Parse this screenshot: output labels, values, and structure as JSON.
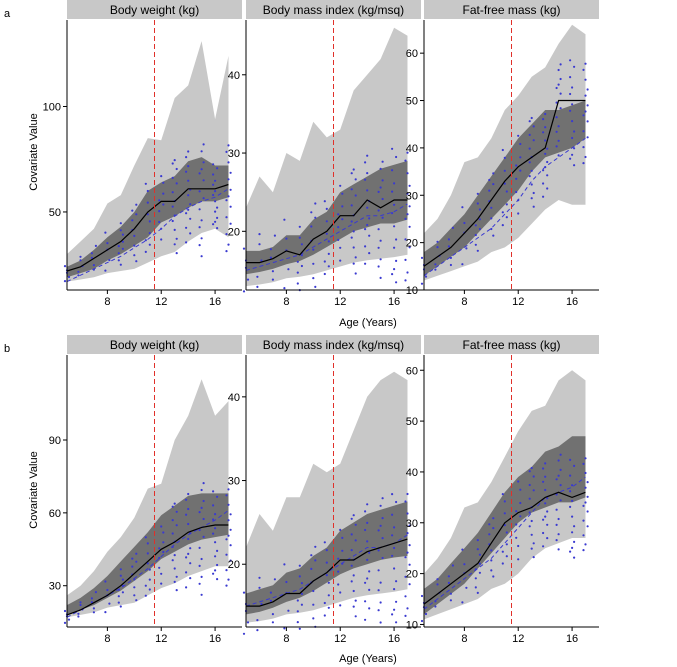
{
  "figure": {
    "panel_labels": [
      "a",
      "b"
    ],
    "xlabel": "Age (Years)",
    "ylabel": "Covariate Value",
    "colors": {
      "outer_band": "#c8c8c8",
      "inner_band": "#717171",
      "median_line": "#000000",
      "observed_points": "#3a3ad0",
      "observed_trend": "#3a3ad0",
      "reference_line": "#e0302a",
      "strip": "#c8c8c8",
      "background": "#ffffff"
    }
  },
  "chart_data": [
    {
      "type": "line",
      "row": "a",
      "title": "Body weight (kg)",
      "xlabel": "",
      "ylabel": "Covariate Value",
      "xlim": [
        5,
        18
      ],
      "ylim": [
        13,
        141
      ],
      "xticks": [
        8,
        12,
        16
      ],
      "yticks": [
        50,
        100
      ],
      "reference_x": 11.5,
      "x": [
        5,
        6,
        7,
        8,
        9,
        10,
        11,
        12,
        13,
        14,
        15,
        16,
        17
      ],
      "series": [
        {
          "name": "5th percentile",
          "values": [
            17,
            18,
            19,
            21,
            22,
            23,
            26,
            29,
            31,
            36,
            40,
            42,
            38
          ]
        },
        {
          "name": "25th percentile",
          "values": [
            19,
            21,
            23,
            27,
            30,
            34,
            38,
            45,
            48,
            52,
            55,
            55,
            57
          ]
        },
        {
          "name": "median",
          "values": [
            22,
            24,
            28,
            32,
            36,
            42,
            50,
            55,
            55,
            61,
            61,
            61,
            63
          ]
        },
        {
          "name": "75th percentile",
          "values": [
            24,
            27,
            32,
            38,
            43,
            50,
            60,
            64,
            67,
            74,
            76,
            72,
            72
          ]
        },
        {
          "name": "95th percentile",
          "values": [
            30,
            36,
            42,
            54,
            58,
            72,
            85,
            84,
            104,
            110,
            131,
            94,
            124
          ]
        },
        {
          "name": "observed trend",
          "values": [
            17,
            20,
            23,
            26,
            29,
            33,
            37,
            42,
            48,
            52,
            55,
            57,
            61
          ]
        }
      ]
    },
    {
      "type": "line",
      "row": "a",
      "title": "Body mass index (kg/msq)",
      "xlabel": "",
      "ylabel": "",
      "xlim": [
        5,
        18
      ],
      "ylim": [
        12.5,
        47
      ],
      "xticks": [
        8,
        12,
        16
      ],
      "yticks": [
        20,
        30,
        40
      ],
      "reference_x": 11.5,
      "x": [
        5,
        6,
        7,
        8,
        9,
        10,
        11,
        12,
        13,
        14,
        15,
        16,
        17
      ],
      "series": [
        {
          "name": "5th percentile",
          "values": [
            13,
            13.2,
            13.5,
            14,
            14.2,
            14.5,
            15,
            15.5,
            16,
            16.3,
            16.5,
            16.7,
            17
          ]
        },
        {
          "name": "25th percentile",
          "values": [
            14.5,
            14.8,
            15.2,
            15.8,
            16.2,
            17,
            18,
            19,
            20,
            20.5,
            21,
            21,
            21.5
          ]
        },
        {
          "name": "median",
          "values": [
            16,
            16,
            16.5,
            17.5,
            17,
            19,
            20,
            22,
            22,
            24,
            23,
            24,
            24
          ]
        },
        {
          "name": "75th percentile",
          "values": [
            17.5,
            17.5,
            18,
            19.5,
            19.5,
            21.5,
            22.5,
            25,
            26,
            27,
            28,
            28.5,
            29
          ]
        },
        {
          "name": "95th percentile",
          "values": [
            23,
            27,
            25,
            30,
            29,
            34,
            32,
            33,
            38,
            40,
            42,
            46,
            45
          ]
        },
        {
          "name": "observed trend",
          "values": [
            15,
            15.5,
            16,
            16.5,
            17,
            18,
            19,
            20,
            21,
            22,
            22,
            22.5,
            23.5
          ]
        }
      ]
    },
    {
      "type": "line",
      "row": "a",
      "title": "Fat-free mass (kg)",
      "xlabel": "",
      "ylabel": "",
      "xlim": [
        5,
        18
      ],
      "ylim": [
        10,
        67
      ],
      "xticks": [
        8,
        12,
        16
      ],
      "yticks": [
        10,
        20,
        30,
        40,
        50,
        60
      ],
      "reference_x": 11.5,
      "x": [
        5,
        6,
        7,
        8,
        9,
        10,
        11,
        12,
        13,
        14,
        15,
        16,
        17
      ],
      "series": [
        {
          "name": "5th percentile",
          "values": [
            12,
            13,
            14,
            15,
            16,
            18,
            19,
            21,
            24,
            27,
            29,
            28,
            28
          ]
        },
        {
          "name": "25th percentile",
          "values": [
            13,
            15,
            17,
            19,
            22,
            25,
            28,
            31,
            35,
            38,
            39,
            40,
            42
          ]
        },
        {
          "name": "median",
          "values": [
            15,
            17,
            19,
            22,
            25,
            29,
            33,
            36,
            38,
            40,
            50,
            50,
            50
          ]
        },
        {
          "name": "75th percentile",
          "values": [
            18,
            20,
            23,
            26,
            30,
            34,
            38,
            42,
            45,
            48,
            48,
            49,
            50
          ]
        },
        {
          "name": "95th percentile",
          "values": [
            22,
            25,
            30,
            37,
            38,
            42,
            48,
            51,
            55,
            57,
            62,
            66,
            64
          ]
        },
        {
          "name": "observed trend",
          "values": [
            13,
            15,
            17,
            19,
            21,
            23,
            26,
            29,
            33,
            36,
            38,
            40,
            42
          ]
        }
      ]
    },
    {
      "type": "line",
      "row": "b",
      "title": "Body weight (kg)",
      "xlabel": "",
      "ylabel": "Covariate Value",
      "xlim": [
        5,
        18
      ],
      "ylim": [
        13,
        125
      ],
      "xticks": [
        8,
        12,
        16
      ],
      "yticks": [
        30,
        60,
        90
      ],
      "reference_x": 11.5,
      "x": [
        5,
        6,
        7,
        8,
        9,
        10,
        11,
        12,
        13,
        14,
        15,
        16,
        17
      ],
      "series": [
        {
          "name": "5th percentile",
          "values": [
            17,
            18,
            19,
            21,
            22,
            23,
            26,
            29,
            31,
            34,
            36,
            38,
            38
          ]
        },
        {
          "name": "25th percentile",
          "values": [
            18,
            20,
            22,
            25,
            28,
            32,
            36,
            41,
            44,
            47,
            49,
            50,
            51
          ]
        },
        {
          "name": "median",
          "values": [
            18,
            20,
            23,
            26,
            30,
            35,
            40,
            45,
            48,
            52,
            54,
            55,
            55
          ]
        },
        {
          "name": "75th percentile",
          "values": [
            22,
            25,
            29,
            34,
            40,
            46,
            52,
            59,
            63,
            67,
            68,
            68,
            68
          ]
        },
        {
          "name": "95th percentile",
          "values": [
            26,
            30,
            36,
            44,
            50,
            58,
            70,
            72,
            90,
            100,
            115,
            100,
            106
          ]
        },
        {
          "name": "observed trend",
          "values": [
            17,
            20,
            23,
            26,
            29,
            33,
            37,
            42,
            47,
            51,
            54,
            57,
            61
          ]
        }
      ]
    },
    {
      "type": "line",
      "row": "b",
      "title": "Body mass index (kg/msq)",
      "xlabel": "",
      "ylabel": "",
      "xlim": [
        5,
        18
      ],
      "ylim": [
        12.5,
        45
      ],
      "xticks": [
        8,
        12,
        16
      ],
      "yticks": [
        20,
        30,
        40
      ],
      "reference_x": 11.5,
      "x": [
        5,
        6,
        7,
        8,
        9,
        10,
        11,
        12,
        13,
        14,
        15,
        16,
        17
      ],
      "series": [
        {
          "name": "5th percentile",
          "values": [
            13,
            13.2,
            13.5,
            14,
            14.2,
            14.5,
            15,
            15.5,
            16,
            16.3,
            16.5,
            16.7,
            17
          ]
        },
        {
          "name": "25th percentile",
          "values": [
            14,
            14.3,
            14.8,
            15.5,
            16,
            16.8,
            17.8,
            18.8,
            19.5,
            20,
            20.5,
            20.8,
            21
          ]
        },
        {
          "name": "median",
          "values": [
            15,
            15,
            15.5,
            16.5,
            16.5,
            18,
            19,
            20.5,
            20.5,
            21.5,
            22,
            22.5,
            23
          ]
        },
        {
          "name": "75th percentile",
          "values": [
            16.5,
            17,
            17.5,
            19,
            19.5,
            21,
            22,
            24,
            25,
            26,
            26.5,
            27,
            27.5
          ]
        },
        {
          "name": "95th percentile",
          "values": [
            22,
            26,
            24,
            28,
            28,
            32,
            31,
            32,
            36,
            40,
            42,
            43,
            42
          ]
        },
        {
          "name": "observed trend",
          "values": [
            15,
            15.5,
            16,
            16.5,
            17,
            18,
            19,
            20,
            21,
            22,
            22,
            22.5,
            23.5
          ]
        }
      ]
    },
    {
      "type": "line",
      "row": "b",
      "title": "Fat-free mass (kg)",
      "xlabel": "",
      "ylabel": "",
      "xlim": [
        5,
        18
      ],
      "ylim": [
        9.5,
        63
      ],
      "xticks": [
        8,
        12,
        16
      ],
      "yticks": [
        10,
        20,
        30,
        40,
        50,
        60
      ],
      "reference_x": 11.5,
      "x": [
        5,
        6,
        7,
        8,
        9,
        10,
        11,
        12,
        13,
        14,
        15,
        16,
        17
      ],
      "series": [
        {
          "name": "5th percentile",
          "values": [
            11,
            12,
            13,
            14,
            15,
            17,
            18,
            20,
            23,
            25,
            26,
            27,
            27
          ]
        },
        {
          "name": "25th percentile",
          "values": [
            12,
            14,
            16,
            18,
            21,
            24,
            27,
            30,
            32,
            33,
            34,
            34,
            35
          ]
        },
        {
          "name": "median",
          "values": [
            14,
            16,
            18,
            20,
            22,
            26,
            30,
            32,
            33,
            35,
            36,
            35,
            36
          ]
        },
        {
          "name": "75th percentile",
          "values": [
            17,
            19,
            22,
            25,
            28,
            32,
            36,
            39,
            41,
            44,
            45,
            47,
            47
          ]
        },
        {
          "name": "95th percentile",
          "values": [
            20,
            23,
            27,
            33,
            34,
            38,
            43,
            48,
            52,
            53,
            58,
            60,
            58
          ]
        },
        {
          "name": "observed trend",
          "values": [
            13,
            15,
            17,
            19,
            21,
            23,
            26,
            29,
            32,
            35,
            36,
            37,
            39
          ]
        }
      ]
    }
  ]
}
